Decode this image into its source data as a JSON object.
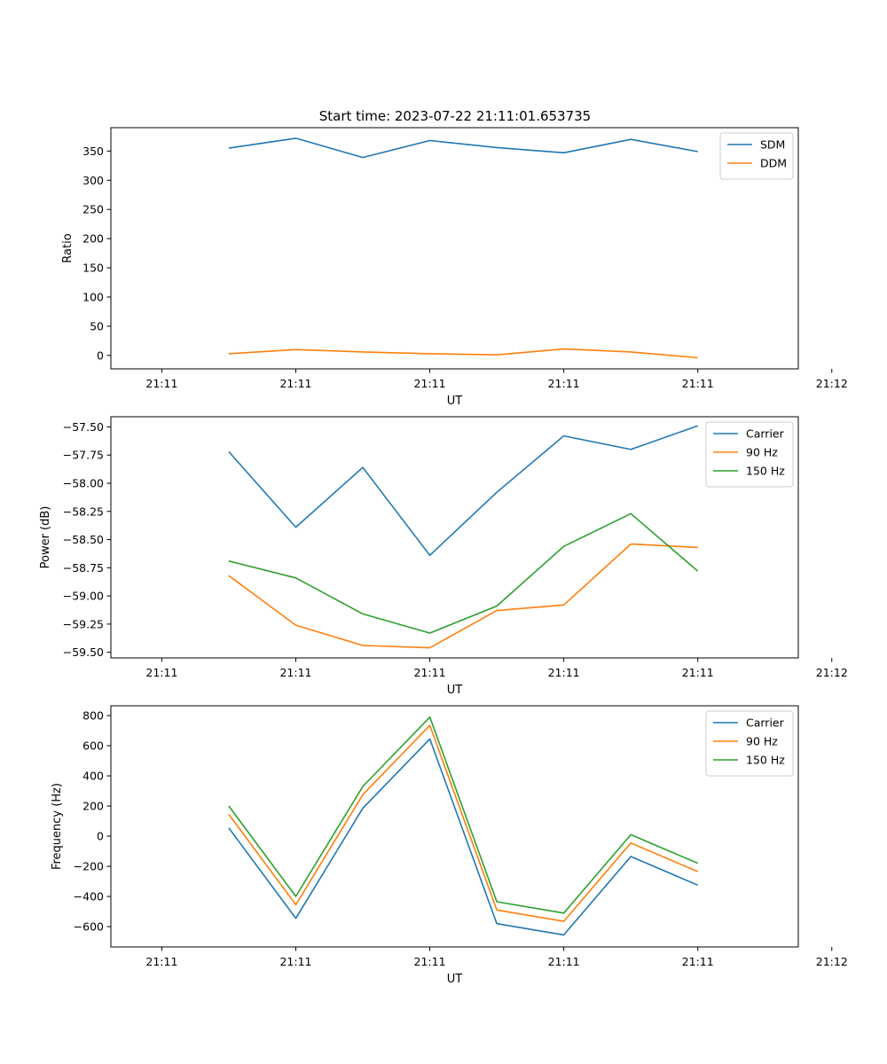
{
  "figure": {
    "title": "Start time: 2023-07-22 21:11:01.653735"
  },
  "chart_data": [
    {
      "type": "line",
      "ylabel": "Ratio",
      "xlabel": "UT",
      "x": [
        0.5,
        1.0,
        1.5,
        2.0,
        2.5,
        3.0,
        3.5,
        4.0
      ],
      "xlim": [
        -0.38,
        4.75
      ],
      "xticks": [
        0,
        1,
        2,
        3,
        4,
        5
      ],
      "xtick_labels": [
        "21:11",
        "21:11",
        "21:11",
        "21:11",
        "21:11",
        "21:12"
      ],
      "ylim": [
        -23,
        390
      ],
      "yticks": [
        0,
        50,
        100,
        150,
        200,
        250,
        300,
        350
      ],
      "ytick_labels": [
        "0",
        "50",
        "100",
        "150",
        "200",
        "250",
        "300",
        "350"
      ],
      "legend_position": "top-right",
      "series": [
        {
          "name": "SDM",
          "color": "#1f77b4",
          "values": [
            355,
            372,
            339,
            368,
            356,
            347,
            370,
            349
          ]
        },
        {
          "name": "DDM",
          "color": "#ff7f0e",
          "values": [
            3,
            10,
            6,
            3,
            1,
            11,
            6,
            -4
          ]
        }
      ]
    },
    {
      "type": "line",
      "ylabel": "Power (dB)",
      "xlabel": "UT",
      "x": [
        0.5,
        1.0,
        1.5,
        2.0,
        2.5,
        3.0,
        3.5,
        4.0
      ],
      "xlim": [
        -0.38,
        4.75
      ],
      "xticks": [
        0,
        1,
        2,
        3,
        4,
        5
      ],
      "xtick_labels": [
        "21:11",
        "21:11",
        "21:11",
        "21:11",
        "21:11",
        "21:12"
      ],
      "ylim": [
        -59.55,
        -57.41
      ],
      "yticks": [
        -59.5,
        -59.25,
        -59.0,
        -58.75,
        -58.5,
        -58.25,
        -58.0,
        -57.75,
        -57.5
      ],
      "ytick_labels": [
        "−59.50",
        "−59.25",
        "−59.00",
        "−58.75",
        "−58.50",
        "−58.25",
        "−58.00",
        "−57.75",
        "−57.50"
      ],
      "legend_position": "top-right",
      "series": [
        {
          "name": "Carrier",
          "color": "#1f77b4",
          "values": [
            -57.72,
            -58.39,
            -57.86,
            -58.64,
            -58.08,
            -57.58,
            -57.7,
            -57.49
          ]
        },
        {
          "name": "90 Hz",
          "color": "#ff7f0e",
          "values": [
            -58.82,
            -59.26,
            -59.44,
            -59.46,
            -59.13,
            -59.08,
            -58.54,
            -58.57
          ]
        },
        {
          "name": "150 Hz",
          "color": "#2ca02c",
          "values": [
            -58.69,
            -58.84,
            -59.16,
            -59.33,
            -59.09,
            -58.56,
            -58.27,
            -58.78
          ]
        }
      ]
    },
    {
      "type": "line",
      "ylabel": "Frequency (Hz)",
      "xlabel": "UT",
      "x": [
        0.5,
        1.0,
        1.5,
        2.0,
        2.5,
        3.0,
        3.5,
        4.0
      ],
      "xlim": [
        -0.38,
        4.75
      ],
      "xticks": [
        0,
        1,
        2,
        3,
        4,
        5
      ],
      "xtick_labels": [
        "21:11",
        "21:11",
        "21:11",
        "21:11",
        "21:11",
        "21:12"
      ],
      "ylim": [
        -735,
        865
      ],
      "yticks": [
        -600,
        -400,
        -200,
        0,
        200,
        400,
        600,
        800
      ],
      "ytick_labels": [
        "−600",
        "−400",
        "−200",
        "0",
        "200",
        "400",
        "600",
        "800"
      ],
      "legend_position": "top-right",
      "series": [
        {
          "name": "Carrier",
          "color": "#1f77b4",
          "values": [
            55,
            -545,
            185,
            645,
            -580,
            -655,
            -135,
            -325
          ]
        },
        {
          "name": "90 Hz",
          "color": "#ff7f0e",
          "values": [
            145,
            -455,
            275,
            735,
            -490,
            -565,
            -45,
            -235
          ]
        },
        {
          "name": "150 Hz",
          "color": "#2ca02c",
          "values": [
            200,
            -400,
            330,
            790,
            -435,
            -510,
            10,
            -180
          ]
        }
      ]
    }
  ]
}
